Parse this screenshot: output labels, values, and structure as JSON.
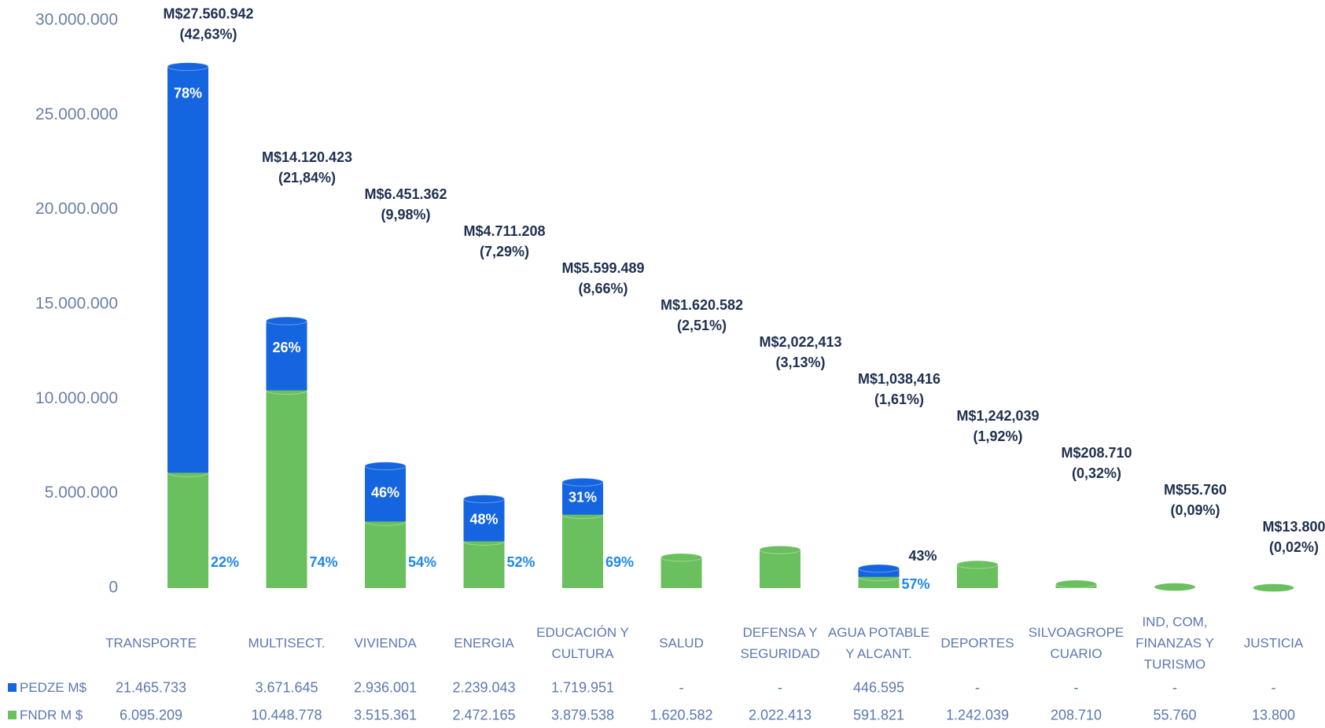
{
  "chart_data": {
    "type": "stacked_bar",
    "categories": [
      "TRANSPORTE",
      "MULTISECT.",
      "VIVIENDA",
      "ENERGIA",
      "EDUCACIÓN Y CULTURA",
      "SALUD",
      "DEFENSA Y SEGURIDAD",
      "AGUA POTABLE Y ALCANT.",
      "DEPORTES",
      "SILVOAGROPE CUARIO",
      "IND, COM, FINANZAS Y TURISMO",
      "JUSTICIA"
    ],
    "series": [
      {
        "name": "PEDZE M$",
        "color": "#1565e0",
        "values": [
          21465733,
          3671645,
          2936001,
          2239043,
          1719951,
          null,
          null,
          446595,
          null,
          null,
          null,
          null
        ],
        "value_labels": [
          "21.465.733",
          "3.671.645",
          "2.936.001",
          "2.239.043",
          "1.719.951",
          "-",
          "-",
          "446.595",
          "-",
          "-",
          "-",
          "-"
        ],
        "percent_labels": [
          "78%",
          "26%",
          "46%",
          "48%",
          "31%",
          null,
          null,
          "43%",
          null,
          null,
          null,
          null
        ]
      },
      {
        "name": "FNDR M $",
        "color": "#6abf5e",
        "values": [
          6095209,
          10448778,
          3515361,
          2472165,
          3879538,
          1620582,
          2022413,
          591821,
          1242039,
          208710,
          55760,
          13800
        ],
        "value_labels": [
          "6.095.209",
          "10.448.778",
          "3.515.361",
          "2.472.165",
          "3.879.538",
          "1.620.582",
          "2.022.413",
          "591.821",
          "1.242.039",
          "208.710",
          "55.760",
          "13.800"
        ],
        "percent_labels": [
          "22%",
          "74%",
          "54%",
          "52%",
          "69%",
          null,
          null,
          "57%",
          null,
          null,
          null,
          null
        ]
      }
    ],
    "total_labels": [
      "M$27.560.942",
      "M$14.120.423",
      "M$6.451.362",
      "M$4.711.208",
      "M$5.599.489",
      "M$1.620.582",
      "M$2,022,413",
      "M$1,038,416",
      "M$1,242,039",
      "M$208.710",
      "M$55.760",
      "M$13.800"
    ],
    "share_labels": [
      "(42,63%)",
      "(21,84%)",
      "(9,98%)",
      "(7,29%)",
      "(8,66%)",
      "(2,51%)",
      "(3,13%)",
      "(1,61%)",
      "(1,92%)",
      "(0,32%)",
      "(0,09%)",
      "(0,02%)"
    ],
    "ylim": [
      0,
      30000000
    ],
    "yticks": [
      0,
      {
        "value": 5000000,
        "label": "5.000.000"
      },
      {
        "value": 10000000,
        "label": "10.000.000"
      },
      {
        "value": 15000000,
        "label": "15.000.000"
      },
      {
        "value": 20000000,
        "label": "20.000.000"
      },
      {
        "value": 25000000,
        "label": "25.000.000"
      },
      {
        "value": 30000000,
        "label": "30.000.000"
      }
    ]
  }
}
